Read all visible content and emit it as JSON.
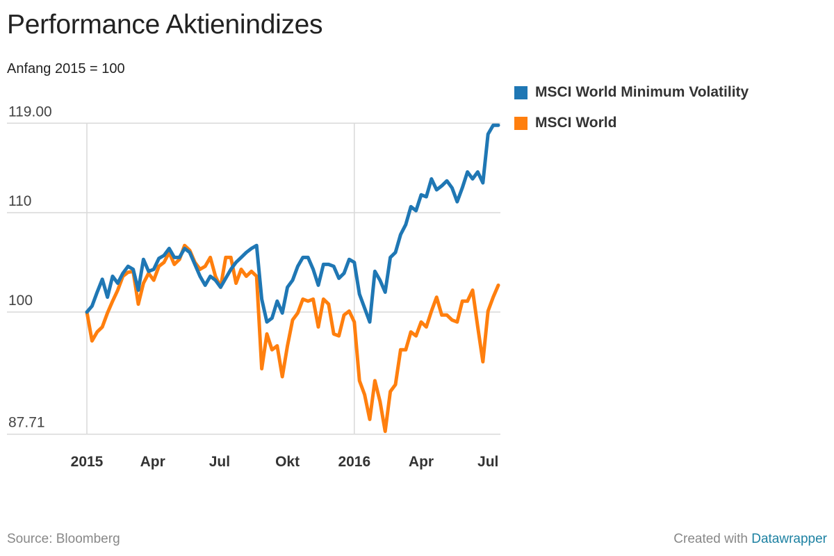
{
  "header": {
    "title": "Performance Aktienindizes",
    "subtitle": "Anfang 2015 = 100"
  },
  "footer": {
    "source": "Source: Bloomberg",
    "credit_prefix": "Created with ",
    "credit_link": "Datawrapper"
  },
  "colors": {
    "min_vol": "#1f77b4",
    "world": "#ff7f0e",
    "grid": "#d9d9d9",
    "link": "#1d81a2"
  },
  "chart_data": {
    "type": "line",
    "title": "Performance Aktienindizes",
    "subtitle": "Anfang 2015 = 100",
    "xlabel": "",
    "ylabel": "",
    "x_unit": "weeks since start of 2015",
    "xlim": [
      0,
      80
    ],
    "ylim": [
      87.71,
      119.0
    ],
    "grid": true,
    "legend_position": "right",
    "y_ticks": [
      {
        "value": 119.0,
        "label": "119.00"
      },
      {
        "value": 110,
        "label": "110"
      },
      {
        "value": 100,
        "label": "100"
      },
      {
        "value": 87.71,
        "label": "87.71"
      }
    ],
    "x_ticks": [
      {
        "value": 0,
        "label": "2015",
        "grid": true
      },
      {
        "value": 12.8,
        "label": "Apr",
        "grid": false
      },
      {
        "value": 25.8,
        "label": "Jul",
        "grid": false
      },
      {
        "value": 39,
        "label": "Okt",
        "grid": false
      },
      {
        "value": 52,
        "label": "2016",
        "grid": true
      },
      {
        "value": 65,
        "label": "Apr",
        "grid": false
      },
      {
        "value": 78,
        "label": "Jul",
        "grid": false
      }
    ],
    "x": [
      0,
      1,
      2,
      3,
      4,
      5,
      6,
      7,
      8,
      9,
      10,
      11,
      12,
      13,
      14,
      15,
      16,
      17,
      18,
      19,
      20,
      21,
      22,
      23,
      24,
      25,
      26,
      27,
      28,
      29,
      30,
      31,
      32,
      33,
      34,
      35,
      36,
      37,
      38,
      39,
      40,
      41,
      42,
      43,
      44,
      45,
      46,
      47,
      48,
      49,
      50,
      51,
      52,
      53,
      54,
      55,
      56,
      57,
      58,
      59,
      60,
      61,
      62,
      63,
      64,
      65,
      66,
      67,
      68,
      69,
      70,
      71,
      72,
      73,
      74,
      75,
      76,
      77,
      78,
      79,
      80
    ],
    "series": [
      {
        "name": "MSCI World Minimum Volatility",
        "color": "#1f77b4",
        "values": [
          100,
          100.6,
          102,
          103.3,
          101.5,
          103.6,
          102.9,
          103.9,
          104.6,
          104.3,
          102.2,
          105.3,
          104.1,
          104.3,
          105.4,
          105.7,
          106.4,
          105.5,
          105.5,
          106.4,
          106,
          104.8,
          103.6,
          102.7,
          103.6,
          103.2,
          102.5,
          103.4,
          104.3,
          105,
          105.5,
          106,
          106.4,
          106.7,
          101.3,
          99,
          99.4,
          101.1,
          99.9,
          102.5,
          103.2,
          104.6,
          105.5,
          105.5,
          104.3,
          102.7,
          104.8,
          104.8,
          104.6,
          103.4,
          103.9,
          105.3,
          105,
          101.8,
          100.4,
          99,
          104.1,
          103.2,
          102,
          105.5,
          106,
          107.8,
          108.8,
          110.6,
          110.2,
          111.8,
          111.6,
          113.4,
          112.3,
          112.7,
          113.2,
          112.5,
          111.1,
          112.5,
          114.1,
          113.4,
          114.1,
          113,
          117.9,
          118.8,
          118.8
        ]
      },
      {
        "name": "MSCI World",
        "color": "#ff7f0e",
        "values": [
          100,
          97.1,
          98,
          98.5,
          99.9,
          101.1,
          102.2,
          103.6,
          104,
          104.1,
          100.8,
          102.9,
          103.9,
          103.2,
          104.6,
          105,
          106,
          104.8,
          105.3,
          106.7,
          106.2,
          105,
          104.3,
          104.6,
          105.5,
          103.6,
          102.5,
          105.5,
          105.5,
          102.9,
          104.3,
          103.6,
          104.1,
          103.6,
          94.3,
          97.8,
          96.2,
          96.6,
          93.5,
          96.6,
          99.2,
          99.9,
          101.3,
          101.1,
          101.3,
          98.5,
          101.3,
          100.8,
          97.8,
          97.6,
          99.7,
          100.1,
          99,
          93.1,
          91.7,
          89.2,
          93.1,
          91,
          88,
          92,
          92.7,
          96.2,
          96.2,
          98,
          97.6,
          99,
          98.5,
          100.1,
          101.5,
          99.7,
          99.7,
          99.2,
          99,
          101.1,
          101.1,
          102.2,
          98.5,
          95,
          100.1,
          101.5,
          102.7
        ]
      }
    ]
  }
}
